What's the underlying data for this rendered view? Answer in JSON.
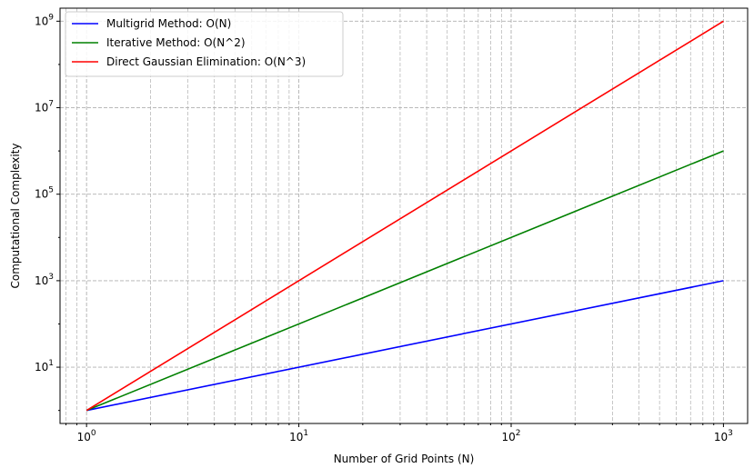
{
  "chart_data": {
    "type": "line",
    "x_scale": "log",
    "y_scale": "log",
    "xlim": [
      0.75,
      1300
    ],
    "ylim": [
      0.5,
      2000000000
    ],
    "grid": true,
    "legend_position": "top-left",
    "xlabel": "Number of Grid Points (N)",
    "ylabel": "Computational Complexity",
    "x_ticks": [
      {
        "value": 1,
        "base": "10",
        "exp": "0"
      },
      {
        "value": 10,
        "base": "10",
        "exp": "1"
      },
      {
        "value": 100,
        "base": "10",
        "exp": "2"
      },
      {
        "value": 1000,
        "base": "10",
        "exp": "3"
      }
    ],
    "y_ticks": [
      {
        "value": 10,
        "base": "10",
        "exp": "1"
      },
      {
        "value": 1000,
        "base": "10",
        "exp": "3"
      },
      {
        "value": 100000,
        "base": "10",
        "exp": "5"
      },
      {
        "value": 10000000,
        "base": "10",
        "exp": "7"
      },
      {
        "value": 1000000000,
        "base": "10",
        "exp": "9"
      }
    ],
    "x": [
      1,
      1000
    ],
    "series": [
      {
        "name": "Multigrid Method: O(N)",
        "color": "#0000ff",
        "values": [
          1,
          1000
        ]
      },
      {
        "name": "Iterative Method: O(N^2)",
        "color": "#008000",
        "values": [
          1,
          1000000
        ]
      },
      {
        "name": "Direct Gaussian Elimination: O(N^3)",
        "color": "#ff0000",
        "values": [
          1,
          1000000000
        ]
      }
    ]
  }
}
